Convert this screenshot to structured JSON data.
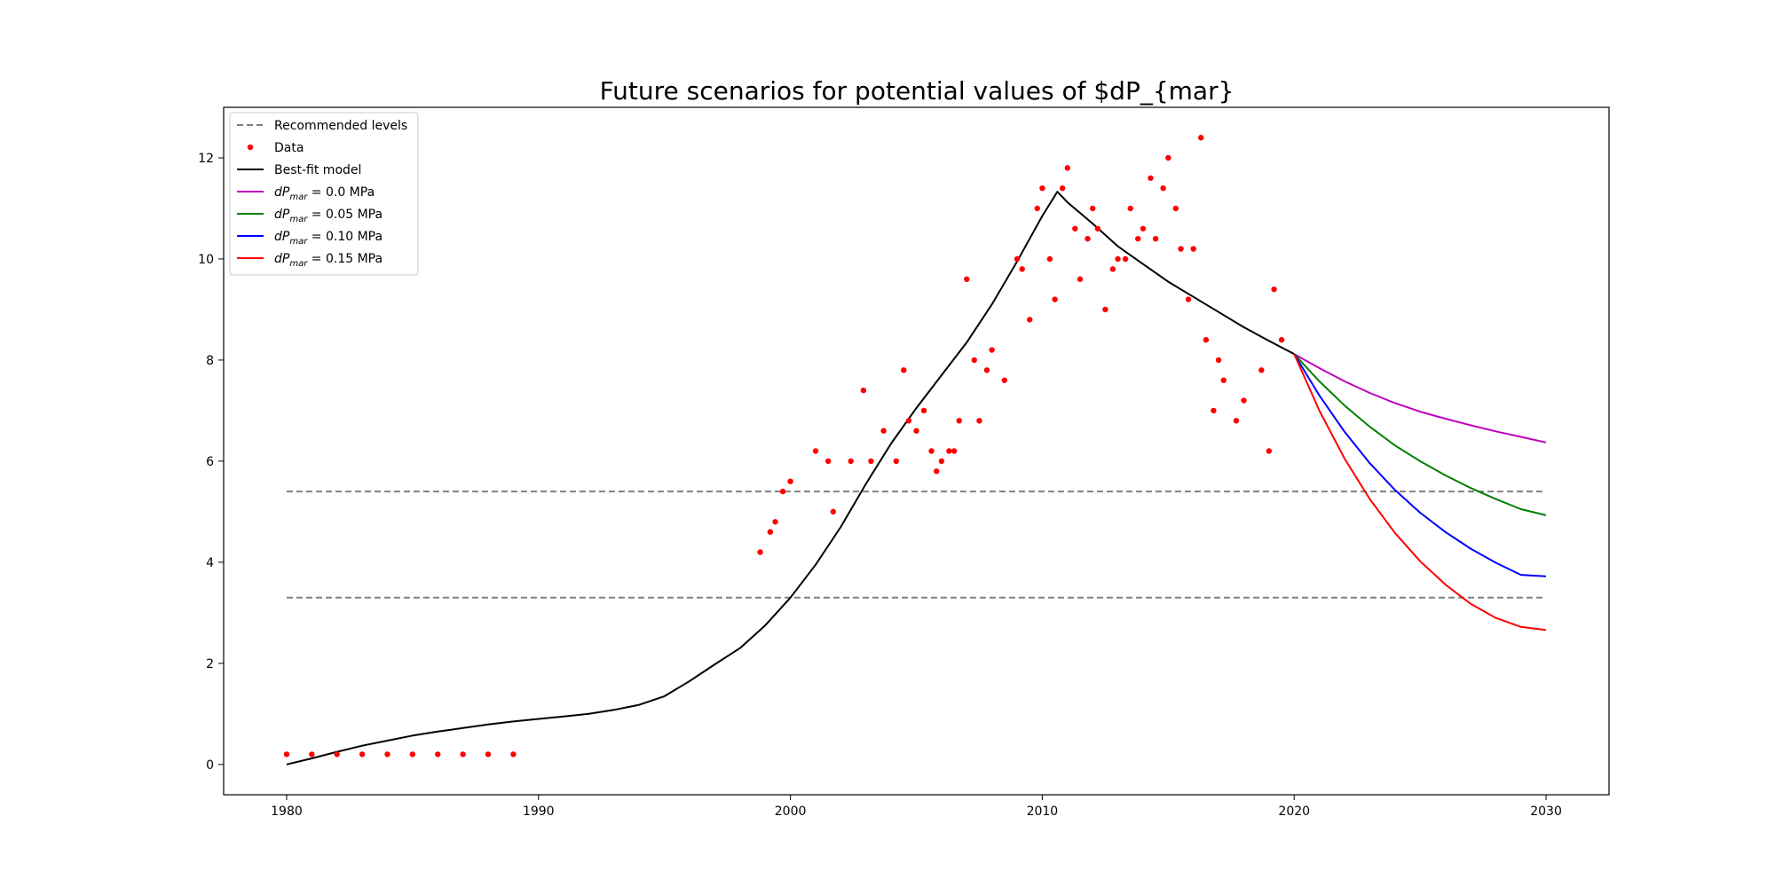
{
  "chart_data": {
    "type": "line",
    "title": "Future scenarios for potential values of $dP_{mar}",
    "xlabel": "",
    "ylabel": "",
    "xlim": [
      1977.5,
      2032.5
    ],
    "ylim": [
      -0.6,
      13.0
    ],
    "xticks": [
      1980,
      1990,
      2000,
      2010,
      2020,
      2030
    ],
    "yticks": [
      0,
      2,
      4,
      6,
      8,
      10,
      12
    ],
    "grid": false,
    "legend_position": "upper-left",
    "legend": [
      {
        "key": "recommended",
        "label": "Recommended levels",
        "style": "dashed",
        "color": "#808080"
      },
      {
        "key": "data",
        "label": "Data",
        "style": "point",
        "color": "#ff0000"
      },
      {
        "key": "best_fit",
        "label": "Best-fit model",
        "style": "line",
        "color": "#000000"
      },
      {
        "key": "s000",
        "label_prefix": "dP",
        "label_sub": "mar",
        "label_suffix": " = 0.0 MPa",
        "style": "line",
        "color": "#bf00bf"
      },
      {
        "key": "s005",
        "label_prefix": "dP",
        "label_sub": "mar",
        "label_suffix": " = 0.05 MPa",
        "style": "line",
        "color": "#008000"
      },
      {
        "key": "s010",
        "label_prefix": "dP",
        "label_sub": "mar",
        "label_suffix": " = 0.10 MPa",
        "style": "line",
        "color": "#0000ff"
      },
      {
        "key": "s015",
        "label_prefix": "dP",
        "label_sub": "mar",
        "label_suffix": " = 0.15 MPa",
        "style": "line",
        "color": "#ff0000"
      }
    ],
    "recommended_levels": {
      "x": [
        1980,
        2030
      ],
      "values": [
        5.4,
        3.3
      ],
      "color": "#808080"
    },
    "data_points": {
      "color": "#ff0000",
      "x": [
        1980,
        1981,
        1982,
        1983,
        1984,
        1985,
        1986,
        1987,
        1988,
        1989,
        1998.8,
        1999.2,
        1999.4,
        1999.7,
        2000.0,
        2001.0,
        2001.5,
        2001.7,
        2002.4,
        2002.9,
        2003.2,
        2003.7,
        2004.2,
        2004.5,
        2004.7,
        2005.0,
        2005.3,
        2005.6,
        2005.8,
        2006.0,
        2006.3,
        2006.5,
        2006.7,
        2007.0,
        2007.3,
        2007.5,
        2007.8,
        2008.0,
        2008.5,
        2009.0,
        2009.2,
        2009.5,
        2009.8,
        2010.0,
        2010.3,
        2010.5,
        2010.8,
        2011.0,
        2011.3,
        2011.5,
        2011.8,
        2012.0,
        2012.2,
        2012.5,
        2012.8,
        2013.0,
        2013.3,
        2013.5,
        2013.8,
        2014.0,
        2014.3,
        2014.5,
        2014.8,
        2015.0,
        2015.3,
        2015.5,
        2015.8,
        2016.0,
        2016.3,
        2016.5,
        2016.8,
        2017.0,
        2017.2,
        2017.7,
        2018.0,
        2018.7,
        2019.0,
        2019.2,
        2019.5
      ],
      "y": [
        0.2,
        0.2,
        0.2,
        0.2,
        0.2,
        0.2,
        0.2,
        0.2,
        0.2,
        0.2,
        4.2,
        4.6,
        4.8,
        5.4,
        5.6,
        6.2,
        6.0,
        5.0,
        6.0,
        7.4,
        6.0,
        6.6,
        6.0,
        7.8,
        6.8,
        6.6,
        7.0,
        6.2,
        5.8,
        6.0,
        6.2,
        6.2,
        6.8,
        9.6,
        8.0,
        6.8,
        7.8,
        8.2,
        7.6,
        10.0,
        9.8,
        8.8,
        11.0,
        11.4,
        10.0,
        9.2,
        11.4,
        11.8,
        10.6,
        9.6,
        10.4,
        11.0,
        10.6,
        9.0,
        9.8,
        10.0,
        10.0,
        11.0,
        10.4,
        10.6,
        11.6,
        10.4,
        11.4,
        12.0,
        11.0,
        10.2,
        9.2,
        10.2,
        12.4,
        8.4,
        7.0,
        8.0,
        7.6,
        6.8,
        7.2,
        7.8,
        6.2,
        9.4,
        8.4
      ]
    },
    "series": [
      {
        "key": "best_fit",
        "color": "#000000",
        "x": [
          1980,
          1981,
          1982,
          1983,
          1984,
          1985,
          1986,
          1987,
          1988,
          1989,
          1990,
          1991,
          1992,
          1993,
          1994,
          1995,
          1996,
          1997,
          1998,
          1999,
          2000,
          2001,
          2002,
          2003,
          2004,
          2005,
          2006,
          2007,
          2008,
          2009,
          2010,
          2010.6,
          2011,
          2012,
          2013,
          2014,
          2015,
          2016,
          2017,
          2018,
          2019,
          2020
        ],
        "y": [
          0.0,
          0.12,
          0.25,
          0.37,
          0.47,
          0.57,
          0.65,
          0.72,
          0.79,
          0.85,
          0.9,
          0.95,
          1.0,
          1.08,
          1.18,
          1.35,
          1.65,
          1.98,
          2.3,
          2.75,
          3.3,
          3.95,
          4.7,
          5.55,
          6.35,
          7.05,
          7.7,
          8.35,
          9.1,
          9.95,
          10.85,
          11.33,
          11.12,
          10.7,
          10.25,
          9.9,
          9.55,
          9.25,
          8.95,
          8.65,
          8.38,
          8.12
        ]
      },
      {
        "key": "s000",
        "color": "#bf00bf",
        "x": [
          2020,
          2021,
          2022,
          2023,
          2024,
          2025,
          2026,
          2027,
          2028,
          2029,
          2030
        ],
        "y": [
          8.12,
          7.84,
          7.58,
          7.35,
          7.15,
          6.98,
          6.84,
          6.71,
          6.59,
          6.48,
          6.37
        ]
      },
      {
        "key": "s005",
        "color": "#008000",
        "x": [
          2020,
          2021,
          2022,
          2023,
          2024,
          2025,
          2026,
          2027,
          2028,
          2029,
          2030
        ],
        "y": [
          8.12,
          7.58,
          7.1,
          6.68,
          6.31,
          6.0,
          5.72,
          5.47,
          5.25,
          5.05,
          4.93
        ]
      },
      {
        "key": "s010",
        "color": "#0000ff",
        "x": [
          2020,
          2021,
          2022,
          2023,
          2024,
          2025,
          2026,
          2027,
          2028,
          2029,
          2030
        ],
        "y": [
          8.12,
          7.3,
          6.58,
          5.96,
          5.43,
          4.98,
          4.6,
          4.27,
          3.99,
          3.75,
          3.72
        ]
      },
      {
        "key": "s015",
        "color": "#ff0000",
        "x": [
          2020,
          2021,
          2022,
          2023,
          2024,
          2025,
          2026,
          2027,
          2028,
          2029,
          2030
        ],
        "y": [
          8.12,
          7.0,
          6.05,
          5.25,
          4.58,
          4.02,
          3.56,
          3.18,
          2.9,
          2.72,
          2.66
        ]
      }
    ]
  }
}
